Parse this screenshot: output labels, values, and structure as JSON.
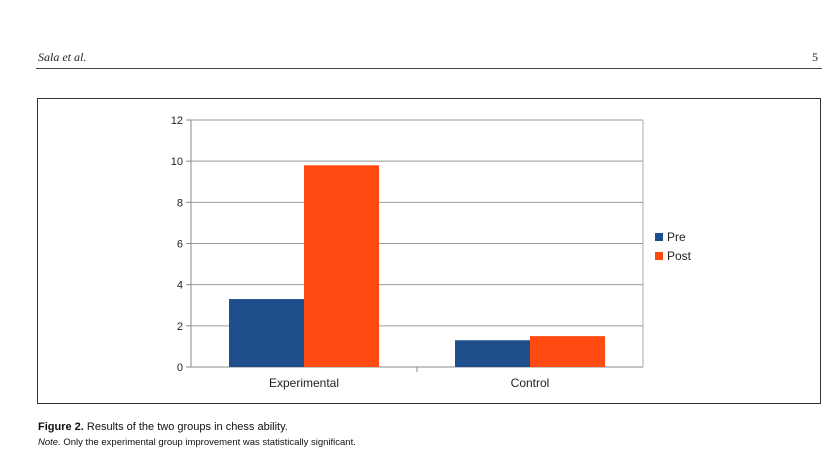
{
  "header": {
    "running_head": "Sala et al.",
    "page_number": "5"
  },
  "figure": {
    "caption_label": "Figure 2.",
    "caption_text": " Results of the two groups in chess ability.",
    "note_label": "Note.",
    "note_text": " Only the experimental group improvement was statistically significant."
  },
  "chart_data": {
    "type": "bar",
    "categories": [
      "Experimental",
      "Control"
    ],
    "series": [
      {
        "name": "Pre",
        "values": [
          3.3,
          1.3
        ],
        "color": "#1f4e8c"
      },
      {
        "name": "Post",
        "values": [
          9.8,
          1.5
        ],
        "color": "#ff4a12"
      }
    ],
    "title": "",
    "xlabel": "",
    "ylabel": "",
    "ylim": [
      0,
      12
    ],
    "yticks": [
      0,
      2,
      4,
      6,
      8,
      10,
      12
    ],
    "grid": true,
    "gridColor": "#999999",
    "legend": "right"
  }
}
